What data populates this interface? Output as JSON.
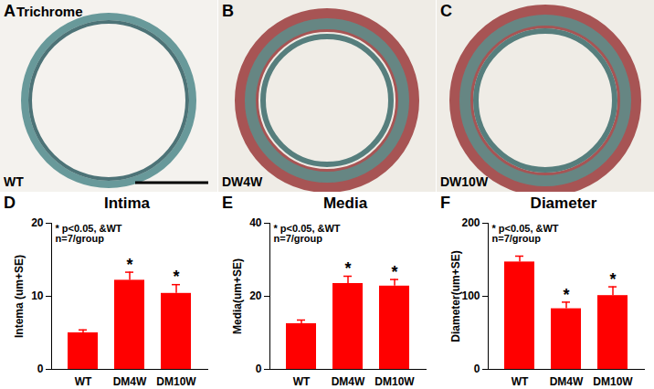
{
  "chart_data": [
    {
      "type": "bar",
      "panel": "D",
      "title": "Intima",
      "ylabel": "Intema (um+SE)",
      "categories": [
        "WT",
        "DM4W",
        "DM10W"
      ],
      "values": [
        5.0,
        12.2,
        10.4
      ],
      "errors": [
        0.4,
        1.1,
        1.2
      ],
      "significance": [
        null,
        "*",
        "*"
      ],
      "annotations": [
        "* p<0.05, &WT",
        "n=7/group"
      ],
      "color": "#ff0000",
      "ylim": [
        0,
        20
      ],
      "yticks": [
        0,
        10,
        20
      ]
    },
    {
      "type": "bar",
      "panel": "E",
      "title": "Media",
      "ylabel": "Media(um+SE)",
      "categories": [
        "WT",
        "DM4W",
        "DM10W"
      ],
      "values": [
        12.5,
        23.5,
        22.8
      ],
      "errors": [
        1.0,
        2.0,
        1.8
      ],
      "significance": [
        null,
        "*",
        "*"
      ],
      "annotations": [
        "* p<0.05, &WT",
        "n=7/group"
      ],
      "color": "#ff0000",
      "ylim": [
        0,
        40
      ],
      "yticks": [
        0,
        20,
        40
      ]
    },
    {
      "type": "bar",
      "panel": "F",
      "title": "Diameter",
      "ylabel": "Diameter(um+SE)",
      "categories": [
        "WT",
        "DM4W",
        "DM10W"
      ],
      "values": [
        147,
        83,
        101
      ],
      "errors": [
        8,
        9,
        12
      ],
      "significance": [
        null,
        "*",
        "*"
      ],
      "annotations": [
        "* p<0.05, &WT",
        "n=7/group"
      ],
      "color": "#ff0000",
      "ylim": [
        0,
        200
      ],
      "yticks": [
        0,
        100,
        200
      ]
    }
  ],
  "image_panels": [
    {
      "panel": "A",
      "stain": "Trichrome",
      "label": "WT"
    },
    {
      "panel": "B",
      "label": "DW4W"
    },
    {
      "panel": "C",
      "label": "DW10W"
    }
  ]
}
